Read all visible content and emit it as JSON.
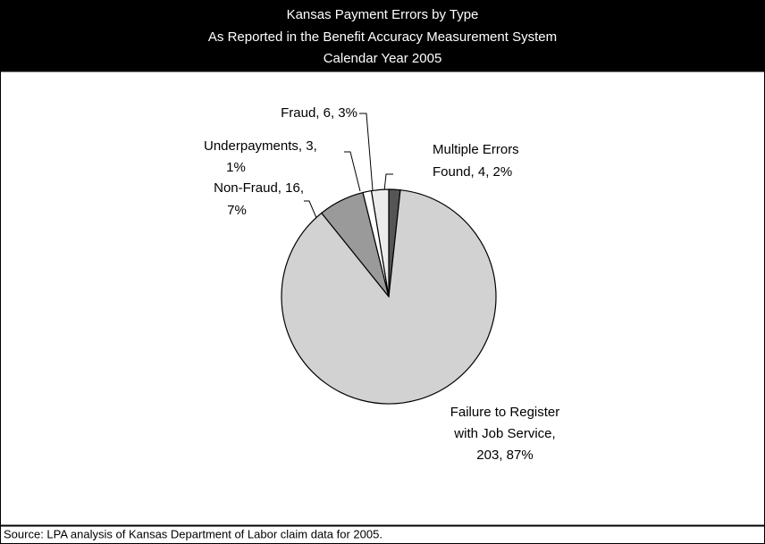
{
  "chart_data": {
    "type": "pie",
    "title": [
      "Kansas Payment Errors by Type",
      "As Reported in the Benefit Accuracy Measurement System",
      "Calendar Year 2005"
    ],
    "labels": [
      [
        "Multiple Errors",
        "Found, 4, 2%"
      ],
      [
        "Failure to Register",
        "with Job Service,",
        "203, 87%"
      ],
      [
        "Non-Fraud, 16,",
        "7%"
      ],
      [
        "Underpayments, 3,",
        "1%"
      ],
      [
        "Fraud, 6, 3%"
      ]
    ],
    "values": [
      4,
      203,
      16,
      3,
      6
    ],
    "colors": [
      "#555555",
      "#d2d2d2",
      "#9a9a9a",
      "#ffffff",
      "#ececec"
    ],
    "source": "Source:  LPA analysis of Kansas Department of Labor claim data for 2005."
  }
}
